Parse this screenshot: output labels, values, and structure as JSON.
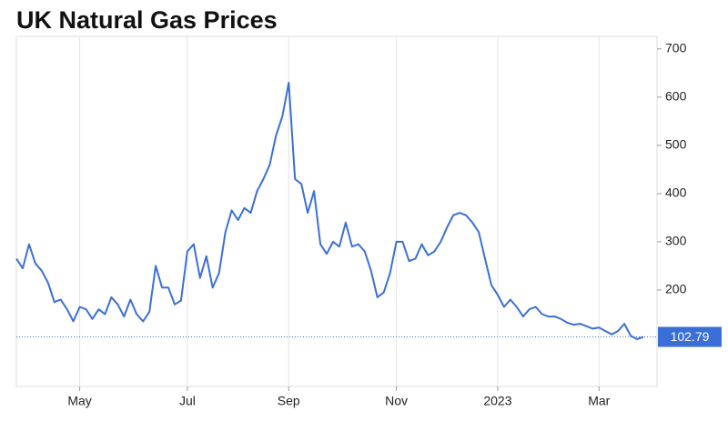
{
  "chart_data": {
    "type": "line",
    "title": "UK Natural Gas Prices",
    "categories": [
      null,
      null,
      null,
      null,
      null,
      null,
      null,
      null,
      null,
      null,
      "May",
      null,
      null,
      null,
      null,
      null,
      null,
      null,
      null,
      null,
      null,
      null,
      null,
      null,
      null,
      null,
      null,
      "Jul",
      null,
      null,
      null,
      null,
      null,
      null,
      null,
      null,
      null,
      null,
      null,
      null,
      null,
      null,
      null,
      "Sep",
      null,
      null,
      null,
      null,
      null,
      null,
      null,
      null,
      null,
      null,
      null,
      null,
      null,
      null,
      null,
      null,
      "Nov",
      null,
      null,
      null,
      null,
      null,
      null,
      null,
      null,
      null,
      null,
      null,
      null,
      null,
      null,
      null,
      "2023",
      null,
      null,
      null,
      null,
      null,
      null,
      null,
      null,
      null,
      null,
      null,
      null,
      null,
      null,
      null,
      "Mar",
      null,
      null,
      null,
      null,
      null,
      null,
      null
    ],
    "values": [
      265,
      245,
      295,
      255,
      240,
      215,
      175,
      180,
      160,
      135,
      165,
      160,
      140,
      160,
      150,
      185,
      170,
      145,
      180,
      150,
      135,
      155,
      250,
      205,
      205,
      170,
      178,
      280,
      295,
      225,
      270,
      205,
      235,
      320,
      365,
      345,
      370,
      360,
      405,
      430,
      460,
      520,
      560,
      630,
      430,
      420,
      360,
      405,
      295,
      275,
      300,
      290,
      340,
      290,
      295,
      280,
      240,
      185,
      195,
      235,
      300,
      300,
      260,
      265,
      295,
      272,
      280,
      300,
      330,
      355,
      360,
      355,
      340,
      320,
      265,
      210,
      190,
      165,
      180,
      165,
      145,
      160,
      165,
      150,
      145,
      145,
      140,
      132,
      128,
      130,
      125,
      120,
      122,
      115,
      108,
      115,
      130,
      105,
      98,
      102.79
    ],
    "color": "#3b6fd8",
    "ylim": [
      0,
      726
    ],
    "yticks": [
      200,
      300,
      400,
      500,
      600,
      700
    ],
    "grid": true
  }
}
